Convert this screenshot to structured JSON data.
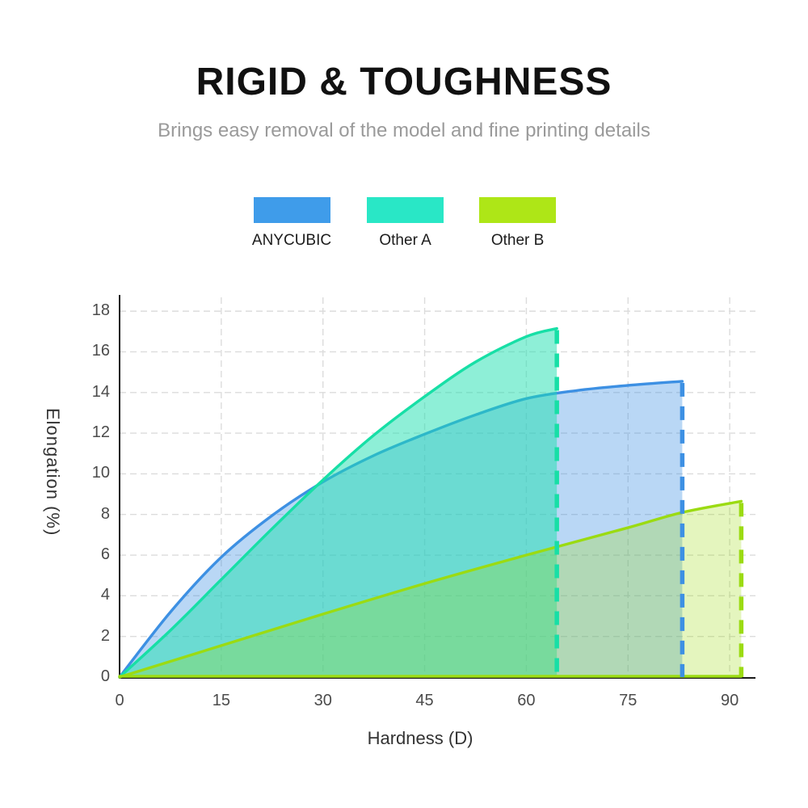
{
  "header": {
    "title": "RIGID & TOUGHNESS",
    "subtitle": "Brings easy removal of the model and fine printing details"
  },
  "legend": {
    "items": [
      {
        "label": "ANYCUBIC",
        "color": "#3F9CEA"
      },
      {
        "label": "Other A",
        "color": "#29E7C6"
      },
      {
        "label": "Other B",
        "color": "#AEE617"
      }
    ]
  },
  "chart_data": {
    "type": "area",
    "title": "",
    "xlabel": "Hardness (D)",
    "ylabel": "Elongation (%)",
    "xlim": [
      0,
      93.8
    ],
    "ylim": [
      0,
      18.8
    ],
    "x_ticks": [
      0,
      15,
      30,
      45,
      60,
      75,
      90
    ],
    "y_ticks": [
      0,
      2,
      4,
      6,
      8,
      10,
      12,
      14,
      16,
      18
    ],
    "grid": true,
    "legend_position": "top",
    "axis_color": "#1a1a1a",
    "grid_color": "#dcdcdc",
    "series": [
      {
        "name": "ANYCUBIC",
        "stroke": "#3D90E3",
        "fill": "#3D90E3",
        "fill_opacity": 0.36,
        "points": [
          [
            0,
            0
          ],
          [
            7.5,
            3.2
          ],
          [
            15,
            5.9
          ],
          [
            22.5,
            7.95
          ],
          [
            30,
            9.6
          ],
          [
            37.5,
            10.9
          ],
          [
            45,
            11.95
          ],
          [
            52.5,
            12.9
          ],
          [
            60,
            13.7
          ],
          [
            67.5,
            14.1
          ],
          [
            75,
            14.35
          ],
          [
            83,
            14.55
          ]
        ],
        "end_line": {
          "x": 83,
          "y_top": 14.55
        }
      },
      {
        "name": "Other A",
        "stroke": "#17DFA6",
        "fill": "#1EE0B0",
        "fill_opacity": 0.5,
        "points": [
          [
            0,
            0
          ],
          [
            7.5,
            2.3
          ],
          [
            15,
            4.8
          ],
          [
            22.5,
            7.3
          ],
          [
            30,
            9.7
          ],
          [
            37.5,
            11.9
          ],
          [
            45,
            13.8
          ],
          [
            52.5,
            15.5
          ],
          [
            60,
            16.75
          ],
          [
            64.5,
            17.15
          ]
        ],
        "end_line": {
          "x": 64.5,
          "y_top": 17.15
        }
      },
      {
        "name": "Other B",
        "stroke": "#9BDB12",
        "fill": "#9CDB0E",
        "fill_opacity": 0.27,
        "points": [
          [
            0,
            0
          ],
          [
            15,
            1.55
          ],
          [
            30,
            3.1
          ],
          [
            45,
            4.6
          ],
          [
            60,
            6.0
          ],
          [
            75,
            7.35
          ],
          [
            83,
            8.1
          ],
          [
            91.7,
            8.65
          ]
        ],
        "end_line": {
          "x": 91.7,
          "y_top": 8.65
        }
      }
    ]
  }
}
